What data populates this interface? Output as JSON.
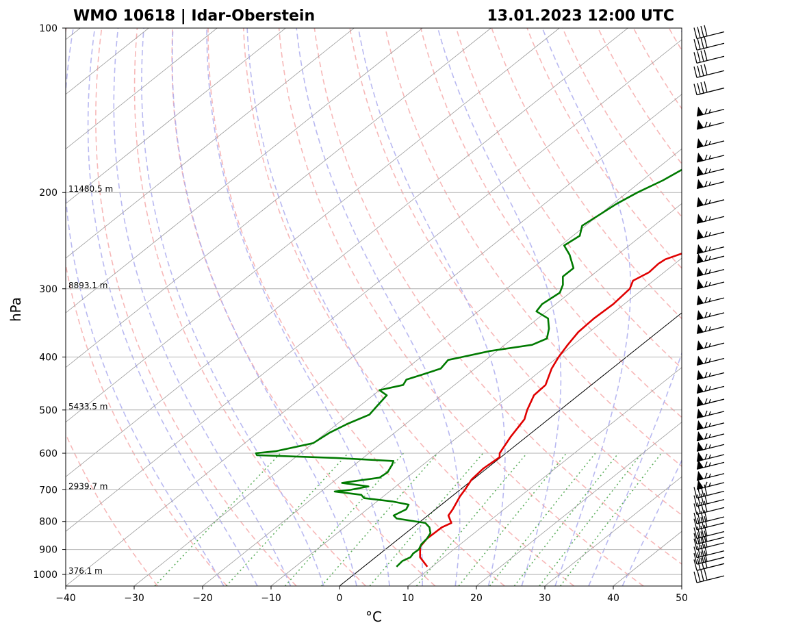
{
  "chart_data": {
    "type": "skew-t",
    "title_left": "WMO 10618 | Idar-Oberstein",
    "title_right": "13.01.2023 12:00 UTC",
    "xlabel": "°C",
    "ylabel": "hPa",
    "xlim": [
      -40,
      50
    ],
    "plim": [
      1050,
      100
    ],
    "skew_deg_per_decade": 100,
    "x_ticks": [
      "−40",
      "−30",
      "−20",
      "−10",
      "0",
      "10",
      "20",
      "30",
      "40",
      "50"
    ],
    "x_tick_values": [
      -40,
      -30,
      -20,
      -10,
      0,
      10,
      20,
      30,
      40,
      50
    ],
    "p_ticks": [
      "100",
      "200",
      "300",
      "400",
      "500",
      "600",
      "700",
      "800",
      "900",
      "1000"
    ],
    "p_tick_values": [
      100,
      200,
      300,
      400,
      500,
      600,
      700,
      800,
      900,
      1000
    ],
    "height_labels": [
      {
        "p": 200,
        "text": "11480.5 m"
      },
      {
        "p": 300,
        "text": "8893.1 m"
      },
      {
        "p": 500,
        "text": "5433.5 m"
      },
      {
        "p": 700,
        "text": "2939.7 m"
      },
      {
        "p": 1000,
        "text": "376.1 m"
      }
    ],
    "colors": {
      "temperature": "#e00000",
      "dewpoint": "#007a00",
      "dry_adiabat": "#f4a0a0",
      "moist_adiabat": "#a8a8ee",
      "mixing_ratio": "#60b060",
      "isotherm": "#9a9a9a",
      "zero_isotherm": "#000000"
    },
    "series": [
      {
        "name": "Temperature",
        "points": [
          [
            968,
            9.3
          ],
          [
            930,
            6.5
          ],
          [
            890,
            4.6
          ],
          [
            860,
            4.1
          ],
          [
            820,
            4.2
          ],
          [
            805,
            4.8
          ],
          [
            780,
            3.0
          ],
          [
            760,
            2.5
          ],
          [
            720,
            1.2
          ],
          [
            700,
            0.7
          ],
          [
            670,
            -0.2
          ],
          [
            640,
            -0.5
          ],
          [
            610,
            -0.2
          ],
          [
            600,
            -0.9
          ],
          [
            560,
            -2.3
          ],
          [
            520,
            -3.5
          ],
          [
            500,
            -4.8
          ],
          [
            470,
            -6.5
          ],
          [
            450,
            -6.7
          ],
          [
            420,
            -8.8
          ],
          [
            400,
            -9.9
          ],
          [
            380,
            -10.8
          ],
          [
            360,
            -11.6
          ],
          [
            340,
            -11.8
          ],
          [
            320,
            -11.6
          ],
          [
            300,
            -12.0
          ],
          [
            290,
            -13.0
          ],
          [
            280,
            -12.2
          ],
          [
            270,
            -12.4
          ],
          [
            265,
            -12.2
          ],
          [
            258,
            -10.7
          ],
          [
            250,
            -8.0
          ],
          [
            245,
            -7.0
          ],
          [
            235,
            -6.3
          ],
          [
            230,
            -5.4
          ],
          [
            225,
            -4.9
          ],
          [
            215,
            -3.8
          ],
          [
            205,
            -3.7
          ],
          [
            200,
            -4.2
          ],
          [
            190,
            -3.5
          ],
          [
            180,
            -2.8
          ],
          [
            170,
            -2.4
          ],
          [
            160,
            -1.4
          ],
          [
            150,
            -0.3
          ],
          [
            140,
            -0.5
          ],
          [
            130,
            -0.6
          ],
          [
            120,
            1.4
          ],
          [
            115,
            1.5
          ],
          [
            110,
            4.2
          ],
          [
            105,
            5.4
          ],
          [
            100,
            5.6
          ]
        ]
      },
      {
        "name": "Dewpoint",
        "points": [
          [
            968,
            4.8
          ],
          [
            945,
            4.6
          ],
          [
            930,
            5.1
          ],
          [
            915,
            4.8
          ],
          [
            900,
            4.9
          ],
          [
            880,
            4.3
          ],
          [
            860,
            4.1
          ],
          [
            840,
            3.6
          ],
          [
            820,
            2.4
          ],
          [
            805,
            1.0
          ],
          [
            790,
            -4.0
          ],
          [
            780,
            -5.0
          ],
          [
            760,
            -4.3
          ],
          [
            745,
            -4.8
          ],
          [
            735,
            -7.8
          ],
          [
            725,
            -12.5
          ],
          [
            715,
            -13.5
          ],
          [
            705,
            -18.0
          ],
          [
            700,
            -16.0
          ],
          [
            690,
            -14.0
          ],
          [
            680,
            -18.5
          ],
          [
            665,
            -14.0
          ],
          [
            650,
            -13.8
          ],
          [
            630,
            -14.5
          ],
          [
            620,
            -15.0
          ],
          [
            612,
            -24.0
          ],
          [
            605,
            -36.0
          ],
          [
            600,
            -36.5
          ],
          [
            595,
            -34.0
          ],
          [
            575,
            -30.0
          ],
          [
            550,
            -29.5
          ],
          [
            530,
            -28.5
          ],
          [
            510,
            -27.0
          ],
          [
            490,
            -27.5
          ],
          [
            470,
            -28.0
          ],
          [
            460,
            -30.0
          ],
          [
            450,
            -27.5
          ],
          [
            440,
            -28.0
          ],
          [
            430,
            -26.5
          ],
          [
            420,
            -25.0
          ],
          [
            405,
            -25.5
          ],
          [
            400,
            -24.0
          ],
          [
            390,
            -21.0
          ],
          [
            380,
            -16.0
          ],
          [
            370,
            -15.0
          ],
          [
            355,
            -16.5
          ],
          [
            340,
            -18.5
          ],
          [
            330,
            -21.5
          ],
          [
            320,
            -22.0
          ],
          [
            305,
            -21.5
          ],
          [
            295,
            -22.5
          ],
          [
            285,
            -24.0
          ],
          [
            275,
            -24.0
          ],
          [
            260,
            -27.0
          ],
          [
            250,
            -29.5
          ],
          [
            240,
            -29.0
          ],
          [
            230,
            -30.5
          ],
          [
            220,
            -30.0
          ],
          [
            210,
            -29.5
          ],
          [
            200,
            -28.5
          ],
          [
            190,
            -27.0
          ],
          [
            180,
            -26.0
          ],
          [
            170,
            -25.0
          ],
          [
            160,
            -23.8
          ],
          [
            150,
            -23.0
          ],
          [
            140,
            -22.0
          ],
          [
            130,
            -21.5
          ],
          [
            120,
            -20.5
          ],
          [
            110,
            -19.5
          ],
          [
            100,
            -19.5
          ]
        ]
      }
    ],
    "wind_barbs_pressure": [
      1000,
      950,
      925,
      900,
      870,
      850,
      830,
      800,
      780,
      750,
      725,
      700,
      675,
      650,
      620,
      600,
      575,
      550,
      525,
      500,
      475,
      450,
      425,
      400,
      375,
      350,
      330,
      310,
      290,
      275,
      260,
      250,
      235,
      220,
      205,
      190,
      180,
      170,
      160,
      148,
      140,
      128,
      119,
      112,
      106,
      101
    ]
  }
}
